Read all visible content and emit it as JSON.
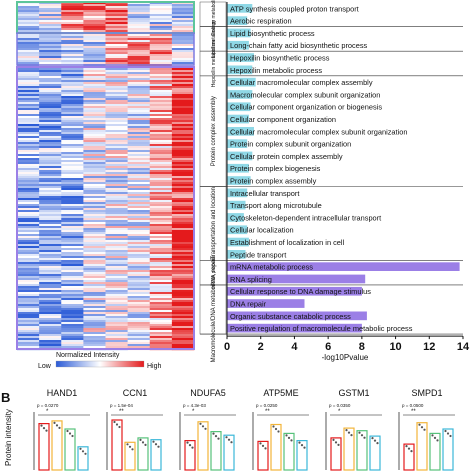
{
  "heatmap": {
    "legend_title": "Normalized Intensity",
    "legend_low": "Low",
    "legend_high": "High",
    "low_color": "#2b5bd7",
    "mid_color": "#ffffff",
    "high_color": "#e41a1c"
  },
  "panel_b_label": "B",
  "panel_b_ylabel": "Protein intensity",
  "chart_data": [
    {
      "type": "bar",
      "orientation": "horizontal",
      "xlabel": "-log10Pvalue",
      "xlim": [
        0,
        14
      ],
      "xticks": [
        "0",
        "2",
        "4",
        "6",
        "8",
        "10",
        "12",
        "14"
      ],
      "bar_colors": {
        "default": "#8fd8e6",
        "highlight": "#9b7fe6"
      },
      "groups": [
        {
          "name": "Energy metabolism",
          "color": "#5cc59a"
        },
        {
          "name": "Lipid metabolism",
          "color": "#5cc59a"
        },
        {
          "name": "Hepoxilin metabolism",
          "color": "#5cc59a"
        },
        {
          "name": "Protein complex assembly",
          "color": "#9b7fe6"
        },
        {
          "name": "Transportation and location",
          "color": "#9b7fe6"
        },
        {
          "name": "mRNA process",
          "color": "#9b7fe6"
        },
        {
          "name": "Macromolecule/DNA metabolism, repair",
          "color": "#9b7fe6"
        }
      ],
      "categories": [
        "ATP synthesis coupled proton transport",
        "Aerobic respiration",
        "Lipid biosynthetic process",
        "Long-chain fatty acid biosynthetic process",
        "Hepoxilin biosynthetic process",
        "Hepoxilin metabolic process",
        "Cellular macromolecular complex assembly",
        "Macromolecular complex subunit organization",
        "Cellular component organization or biogenesis",
        "Cellular component organization",
        "Cellular macromolecular complex subunit organization",
        "Protein complex subunit organization",
        "Cellular protein complex assembly",
        "Protein complex biogenesis",
        "Protein complex assembly",
        "Intracellular transport",
        "Transport along microtubule",
        "Cytoskeleton-dependent intracellular transport",
        "Cellular localization",
        "Establishment of localization in cell",
        "Peptide transport",
        "mRNA metabolic process",
        "RNA splicing",
        "Cellular response to DNA damage stimulus",
        "DNA repair",
        "Organic substance catabolic process",
        "Positive regulation of macromolecule metabolic process"
      ],
      "values": [
        1.5,
        1.2,
        1.4,
        1.3,
        1.6,
        1.5,
        1.7,
        1.5,
        1.4,
        1.3,
        1.6,
        1.2,
        1.5,
        1.3,
        1.4,
        1.2,
        1.1,
        1.0,
        1.2,
        1.3,
        1.1,
        13.8,
        8.2,
        8.0,
        4.6,
        8.3,
        8.0
      ],
      "groups_of_categories": [
        0,
        0,
        1,
        1,
        2,
        2,
        3,
        3,
        3,
        3,
        3,
        3,
        3,
        3,
        3,
        4,
        4,
        4,
        4,
        4,
        4,
        5,
        5,
        6,
        6,
        6,
        6
      ]
    },
    {
      "type": "bar",
      "ylabel": "Protein intensity",
      "panels": [
        {
          "title": "HAND1",
          "pvalue": "p = 0.0270",
          "values": [
            5.2,
            5.5,
            4.6,
            2.6
          ]
        },
        {
          "title": "CCN1",
          "pvalue": "p = 1.5e-04",
          "values": [
            5.6,
            3.1,
            3.6,
            3.4
          ]
        },
        {
          "title": "NDUFA5",
          "pvalue": "p = 4.3e-03",
          "values": [
            3.3,
            5.4,
            4.3,
            3.9
          ]
        },
        {
          "title": "ATP5ME",
          "pvalue": "p = 0.0250",
          "values": [
            3.2,
            5.1,
            4.1,
            3.3
          ]
        },
        {
          "title": "GSTM1",
          "pvalue": "p = 0.0350",
          "values": [
            3.6,
            4.7,
            4.4,
            3.8
          ]
        },
        {
          "title": "SMPD1",
          "pvalue": "p = 0.0500",
          "values": [
            2.9,
            5.3,
            4.1,
            4.6
          ]
        }
      ],
      "series_colors": [
        "#e41a1c",
        "#f2b53a",
        "#56c27a",
        "#3bb7d8"
      ],
      "significance_marks": [
        "*",
        "**"
      ]
    }
  ]
}
